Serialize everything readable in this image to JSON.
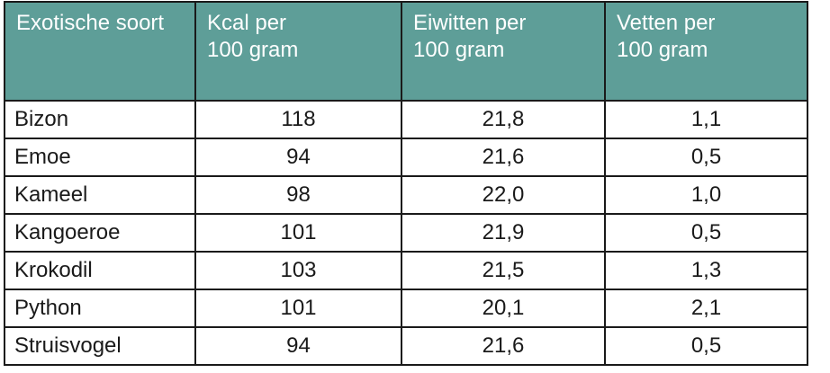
{
  "table": {
    "header_color": "#5e9e98",
    "headers": [
      [
        "Exotische soort"
      ],
      [
        "Kcal per",
        "100 gram"
      ],
      [
        "Eiwitten per",
        "100 gram"
      ],
      [
        "Vetten per",
        "100 gram"
      ]
    ],
    "rows": [
      [
        "Bizon",
        "118",
        "21,8",
        "1,1"
      ],
      [
        "Emoe",
        "94",
        "21,6",
        "0,5"
      ],
      [
        "Kameel",
        "98",
        "22,0",
        "1,0"
      ],
      [
        "Kangoeroe",
        "101",
        "21,9",
        "0,5"
      ],
      [
        "Krokodil",
        "103",
        "21,5",
        "1,3"
      ],
      [
        "Python",
        "101",
        "20,1",
        "2,1"
      ],
      [
        "Struisvogel",
        "94",
        "21,6",
        "0,5"
      ]
    ]
  }
}
